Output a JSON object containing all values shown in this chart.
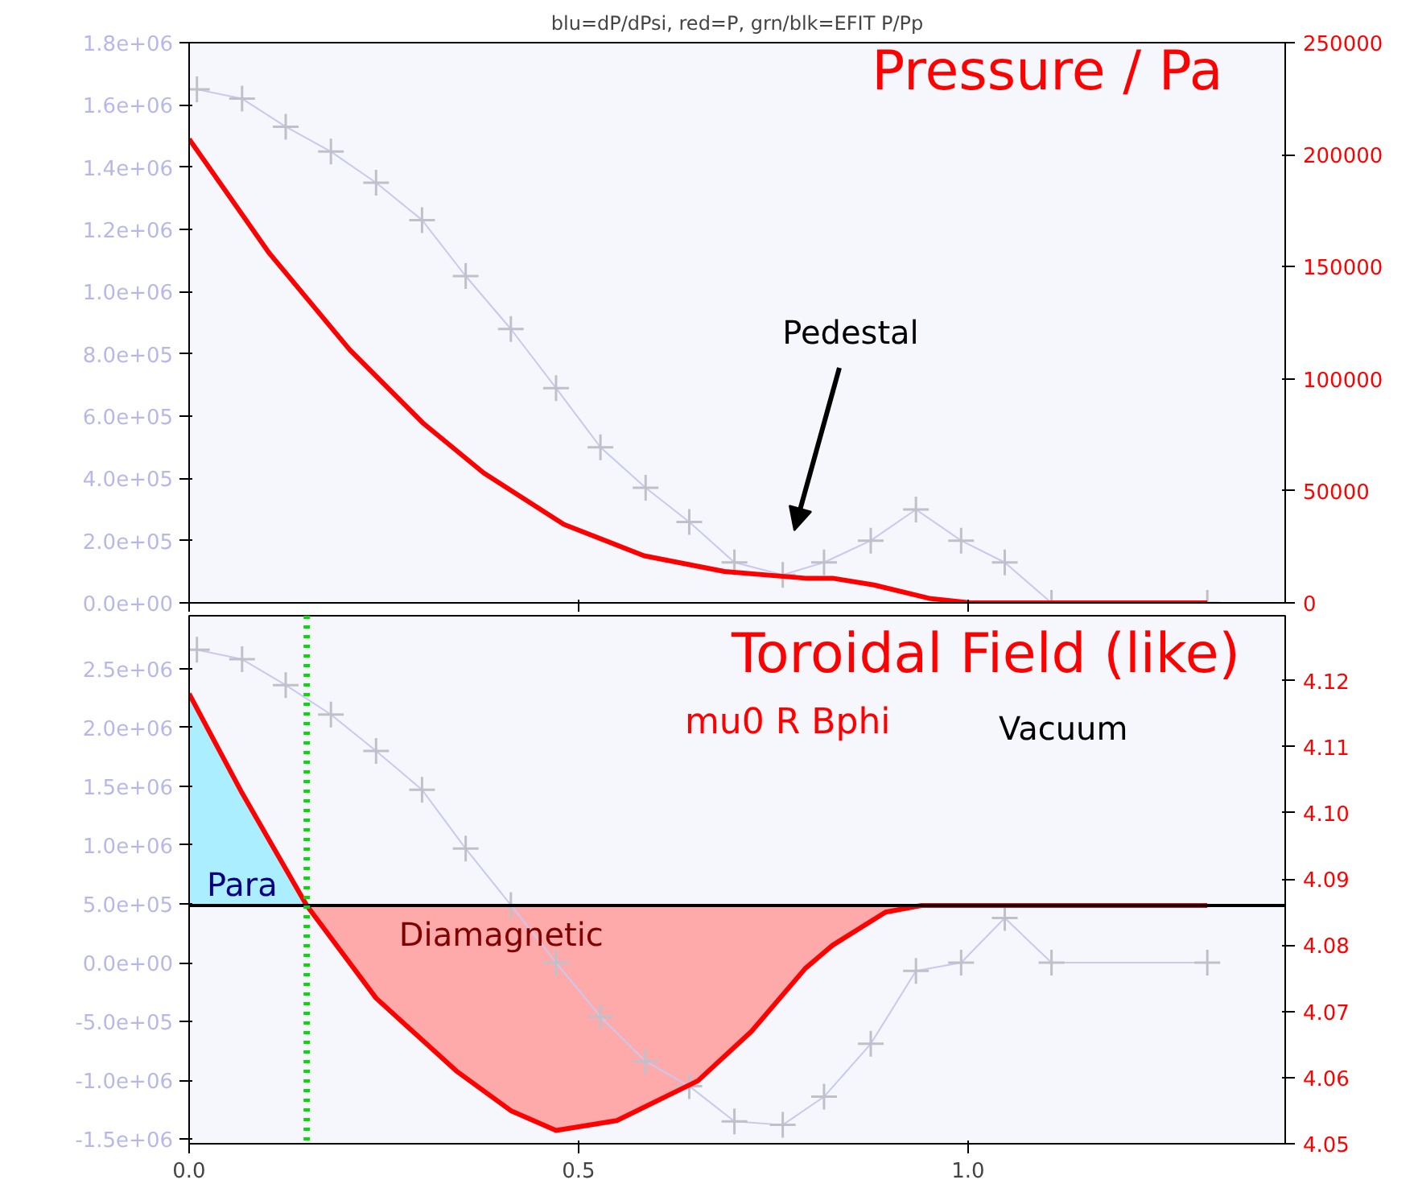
{
  "chart_data": [
    {
      "type": "line",
      "title": "blu=dP/dPsi, red=P, grn/blk=EFIT P/Pp",
      "xlim": [
        0,
        1.407
      ],
      "xticks": [
        {
          "value": 0,
          "label": null
        },
        {
          "value": 0.5,
          "label": null
        },
        {
          "value": 1.0,
          "label": null
        }
      ],
      "ylim": [
        0,
        1800000
      ],
      "yticks": [
        {
          "value": 0,
          "label": "0.0e+00"
        },
        {
          "value": 200000,
          "label": "2.0e+05"
        },
        {
          "value": 400000,
          "label": "4.0e+05"
        },
        {
          "value": 600000,
          "label": "6.0e+05"
        },
        {
          "value": 800000,
          "label": "8.0e+05"
        },
        {
          "value": 1000000,
          "label": "1.0e+06"
        },
        {
          "value": 1200000,
          "label": "1.2e+06"
        },
        {
          "value": 1400000,
          "label": "1.4e+06"
        },
        {
          "value": 1600000,
          "label": "1.6e+06"
        },
        {
          "value": 1800000,
          "label": "1.8e+06"
        }
      ],
      "y2lim": [
        0,
        250000
      ],
      "y2ticks": [
        0,
        50000,
        100000,
        150000,
        200000,
        250000
      ],
      "tick_labels": "y",
      "grid": false,
      "annotations": [
        "Pressure /  Pa",
        "Pedestal"
      ],
      "series": [
        {
          "color": "#c8c8f0",
          "marker": "cross",
          "x": [
            0.01,
            0.068,
            0.124,
            0.182,
            0.24,
            0.299,
            0.355,
            0.413,
            0.471,
            0.528,
            0.586,
            0.642,
            0.7,
            0.762,
            0.815,
            0.875,
            0.933,
            0.991,
            1.047,
            1.107,
            1.307
          ],
          "values": [
            1650000,
            1620000,
            1530000,
            1450000,
            1350000,
            1230000,
            1050000,
            880000,
            690000,
            500000,
            370000,
            260000,
            130000,
            90000,
            130000,
            200000,
            300000,
            200000,
            130000,
            0,
            0
          ]
        },
        {
          "color": "#ff0000",
          "axis": "y2",
          "marker": "none",
          "x": [
            0,
            0.103,
            0.206,
            0.301,
            0.378,
            0.481,
            0.584,
            0.687,
            0.791,
            0.826,
            0.879,
            0.95,
            1.003,
            1.307
          ],
          "values": [
            207000,
            156000,
            113000,
            80000,
            58000,
            35000,
            21000,
            14000,
            11000,
            11000,
            8000,
            2000,
            0,
            0
          ]
        }
      ]
    },
    {
      "type": "line",
      "xlim": [
        0,
        1.407
      ],
      "xticks": [
        {
          "value": 0,
          "label": "0.0"
        },
        {
          "value": 0.5,
          "label": "0.5"
        },
        {
          "value": 1.0,
          "label": "1.0"
        }
      ],
      "ylim": [
        -1540000,
        2950000
      ],
      "yticks": [
        {
          "value": -1500000,
          "label": "-1.5e+06"
        },
        {
          "value": -1000000,
          "label": "-1.0e+06"
        },
        {
          "value": -500000,
          "label": "-5.0e+05"
        },
        {
          "value": 0,
          "label": "0.0e+00"
        },
        {
          "value": 500000,
          "label": "5.0e+05"
        },
        {
          "value": 1000000,
          "label": "1.0e+06"
        },
        {
          "value": 1500000,
          "label": "1.5e+06"
        },
        {
          "value": 2000000,
          "label": "2.0e+06"
        },
        {
          "value": 2500000,
          "label": "2.5e+06"
        }
      ],
      "y2lim": [
        4.05,
        4.1298
      ],
      "y2ticks": [
        {
          "value": 4.05,
          "label": "4.05"
        },
        {
          "value": 4.06,
          "label": "4.06"
        },
        {
          "value": 4.07,
          "label": "4.07"
        },
        {
          "value": 4.08,
          "label": "4.08"
        },
        {
          "value": 4.09,
          "label": "4.09"
        },
        {
          "value": 4.1,
          "label": "4.10"
        },
        {
          "value": 4.11,
          "label": "4.11"
        },
        {
          "value": 4.12,
          "label": "4.12"
        }
      ],
      "grid": false,
      "annotations": [
        "Toroidal Field (like)",
        "mu0 R Bphi",
        "Vacuum"
      ],
      "ref_lines": [
        {
          "axis": "y2",
          "value": 4.086,
          "color": "#000000"
        },
        {
          "axis": "x",
          "value": 0.151,
          "color": "#00e000",
          "line_style": "dotted"
        }
      ],
      "series": [
        {
          "type": "area",
          "name": "Para",
          "axis": "y2",
          "color": "#aaeeff",
          "x": [
            0,
            0.068,
            0.151
          ],
          "values": [
            4.118,
            4.103,
            4.086
          ]
        },
        {
          "type": "area",
          "name": "Diamagnetic",
          "axis": "y2",
          "color": "#ffaaaa",
          "x": [
            0.151,
            0.24,
            0.343,
            0.413,
            0.471,
            0.549,
            0.653,
            0.722,
            0.791,
            0.826,
            0.894,
            0.94
          ],
          "values": [
            4.086,
            4.072,
            4.061,
            4.055,
            4.052,
            4.0535,
            4.0595,
            4.067,
            4.0765,
            4.08,
            4.085,
            4.086
          ]
        },
        {
          "color": "#c8c8f0",
          "marker": "cross",
          "x": [
            0.01,
            0.068,
            0.124,
            0.182,
            0.24,
            0.299,
            0.355,
            0.413,
            0.471,
            0.528,
            0.586,
            0.642,
            0.7,
            0.762,
            0.815,
            0.875,
            0.933,
            0.991,
            1.047,
            1.107,
            1.307
          ],
          "values": [
            2660000,
            2580000,
            2360000,
            2110000,
            1800000,
            1470000,
            970000,
            490000,
            0,
            -460000,
            -840000,
            -1050000,
            -1350000,
            -1380000,
            -1140000,
            -690000,
            -70000,
            0,
            380000,
            0,
            0
          ]
        },
        {
          "color": "#ff0000",
          "axis": "y2",
          "marker": "none",
          "x": [
            0,
            0.068,
            0.151,
            0.24,
            0.343,
            0.413,
            0.471,
            0.549,
            0.653,
            0.722,
            0.791,
            0.826,
            0.894,
            0.94,
            1.0,
            1.307
          ],
          "values": [
            4.118,
            4.103,
            4.086,
            4.072,
            4.061,
            4.055,
            4.052,
            4.0535,
            4.0595,
            4.067,
            4.0765,
            4.08,
            4.085,
            4.086,
            4.086,
            4.086
          ]
        }
      ]
    }
  ]
}
